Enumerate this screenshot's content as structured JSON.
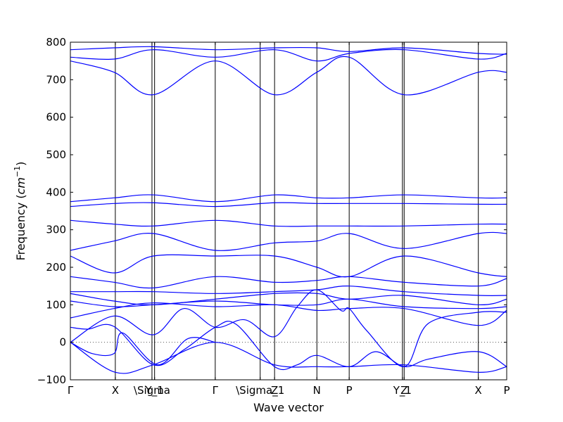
{
  "chart_data": {
    "type": "line",
    "title": "",
    "xlabel": "Wave vector",
    "ylabel": "Frequency ($cm^{-1}$)",
    "ylabel_parts": {
      "main": "Frequency (",
      "unit": "cm",
      "exp": "−1",
      "close": ")"
    },
    "ylim": [
      -100,
      800
    ],
    "yticks": [
      -100,
      0,
      100,
      200,
      300,
      400,
      500,
      600,
      700,
      800
    ],
    "ytick_labels": [
      "−100",
      "0",
      "100",
      "200",
      "300",
      "400",
      "500",
      "600",
      "700",
      "800"
    ],
    "xlim": [
      0,
      1
    ],
    "xticks": [
      {
        "label": "Γ",
        "x": 0.0
      },
      {
        "label": "X",
        "x": 0.103
      },
      {
        "label": "\\Sigma",
        "x": 0.187
      },
      {
        "label": "Y_1",
        "x": 0.193
      },
      {
        "label": "Γ",
        "x": 0.332
      },
      {
        "label": "\\Sigma_1",
        "x": 0.435
      },
      {
        "label": "Z",
        "x": 0.468
      },
      {
        "label": "N",
        "x": 0.565
      },
      {
        "label": "P",
        "x": 0.639
      },
      {
        "label": "Y_1",
        "x": 0.761
      },
      {
        "label": "Z",
        "x": 0.765
      },
      {
        "label": "X",
        "x": 0.935
      },
      {
        "label": "P",
        "x": 1.0
      }
    ],
    "zero_line": true,
    "line_color": "#0000ff",
    "series": [
      {
        "x": [
          0,
          0.103,
          0.19,
          0.332,
          0.468,
          0.565,
          0.639,
          0.765,
          0.935,
          1.0
        ],
        "values": [
          0,
          -80,
          -60,
          0,
          -60,
          -65,
          -65,
          -60,
          -80,
          -65
        ]
      },
      {
        "x": [
          0,
          0.05,
          0.1,
          0.12,
          0.2,
          0.27,
          0.332
        ],
        "values": [
          0,
          -30,
          -30,
          25,
          -60,
          10,
          0
        ]
      },
      {
        "x": [
          0,
          0.04,
          0.1,
          0.19,
          0.26,
          0.332,
          0.38,
          0.468,
          0.52,
          0.565,
          0.639,
          0.7,
          0.765,
          0.82,
          0.935,
          1.0
        ],
        "values": [
          40,
          35,
          42,
          -60,
          -20,
          40,
          48,
          -65,
          -60,
          -35,
          -65,
          -25,
          -65,
          -45,
          -25,
          -65
        ]
      },
      {
        "x": [
          0,
          0.1,
          0.19,
          0.26,
          0.332,
          0.4,
          0.468,
          0.52,
          0.565,
          0.62,
          0.639,
          0.68,
          0.765,
          0.82,
          0.935,
          1.0
        ],
        "values": [
          0,
          70,
          20,
          90,
          40,
          60,
          15,
          95,
          140,
          85,
          90,
          30,
          -65,
          50,
          80,
          80
        ]
      },
      {
        "x": [
          0,
          0.1,
          0.19,
          0.332,
          0.468,
          0.565,
          0.639,
          0.765,
          0.935,
          1.0
        ],
        "values": [
          65,
          90,
          105,
          95,
          100,
          85,
          90,
          90,
          45,
          85
        ]
      },
      {
        "x": [
          0,
          0.1,
          0.19,
          0.332,
          0.468,
          0.565,
          0.639,
          0.765,
          0.935,
          1.0
        ],
        "values": [
          110,
          95,
          100,
          110,
          100,
          100,
          115,
          95,
          90,
          95
        ]
      },
      {
        "x": [
          0,
          0.1,
          0.19,
          0.332,
          0.468,
          0.565,
          0.639,
          0.765,
          0.935,
          1.0
        ],
        "values": [
          130,
          110,
          100,
          115,
          130,
          130,
          115,
          125,
          100,
          115
        ]
      },
      {
        "x": [
          0,
          0.1,
          0.19,
          0.332,
          0.468,
          0.565,
          0.639,
          0.765,
          0.935,
          1.0
        ],
        "values": [
          135,
          135,
          135,
          130,
          135,
          140,
          150,
          135,
          125,
          125
        ]
      },
      {
        "x": [
          0,
          0.1,
          0.19,
          0.332,
          0.468,
          0.565,
          0.639,
          0.765,
          0.935,
          1.0
        ],
        "values": [
          175,
          160,
          145,
          175,
          160,
          165,
          175,
          160,
          150,
          170
        ]
      },
      {
        "x": [
          0,
          0.1,
          0.19,
          0.332,
          0.468,
          0.565,
          0.639,
          0.765,
          0.935,
          1.0
        ],
        "values": [
          230,
          185,
          230,
          230,
          230,
          200,
          175,
          230,
          185,
          175
        ]
      },
      {
        "x": [
          0,
          0.1,
          0.19,
          0.332,
          0.468,
          0.565,
          0.639,
          0.765,
          0.935,
          1.0
        ],
        "values": [
          245,
          270,
          290,
          245,
          265,
          270,
          290,
          250,
          290,
          290
        ]
      },
      {
        "x": [
          0,
          0.1,
          0.19,
          0.332,
          0.468,
          0.565,
          0.639,
          0.765,
          0.935,
          1.0
        ],
        "values": [
          325,
          315,
          310,
          325,
          310,
          310,
          310,
          310,
          315,
          315
        ]
      },
      {
        "x": [
          0,
          0.1,
          0.19,
          0.332,
          0.468,
          0.565,
          0.639,
          0.765,
          0.935,
          1.0
        ],
        "values": [
          375,
          385,
          393,
          375,
          393,
          385,
          385,
          393,
          385,
          385
        ]
      },
      {
        "x": [
          0,
          0.1,
          0.19,
          0.332,
          0.468,
          0.565,
          0.639,
          0.765,
          0.935,
          1.0
        ],
        "values": [
          362,
          370,
          372,
          362,
          372,
          370,
          370,
          370,
          368,
          368
        ]
      },
      {
        "x": [
          0,
          0.1,
          0.19,
          0.332,
          0.468,
          0.565,
          0.639,
          0.765,
          0.935,
          1.0
        ],
        "values": [
          750,
          720,
          660,
          750,
          660,
          720,
          760,
          660,
          720,
          720
        ]
      },
      {
        "x": [
          0,
          0.1,
          0.19,
          0.332,
          0.468,
          0.565,
          0.639,
          0.765,
          0.935,
          1.0
        ],
        "values": [
          760,
          755,
          780,
          760,
          780,
          750,
          770,
          780,
          755,
          770
        ]
      },
      {
        "x": [
          0,
          0.1,
          0.19,
          0.332,
          0.468,
          0.565,
          0.639,
          0.765,
          0.935,
          1.0
        ],
        "values": [
          780,
          785,
          788,
          780,
          785,
          785,
          775,
          785,
          770,
          768
        ]
      }
    ]
  }
}
